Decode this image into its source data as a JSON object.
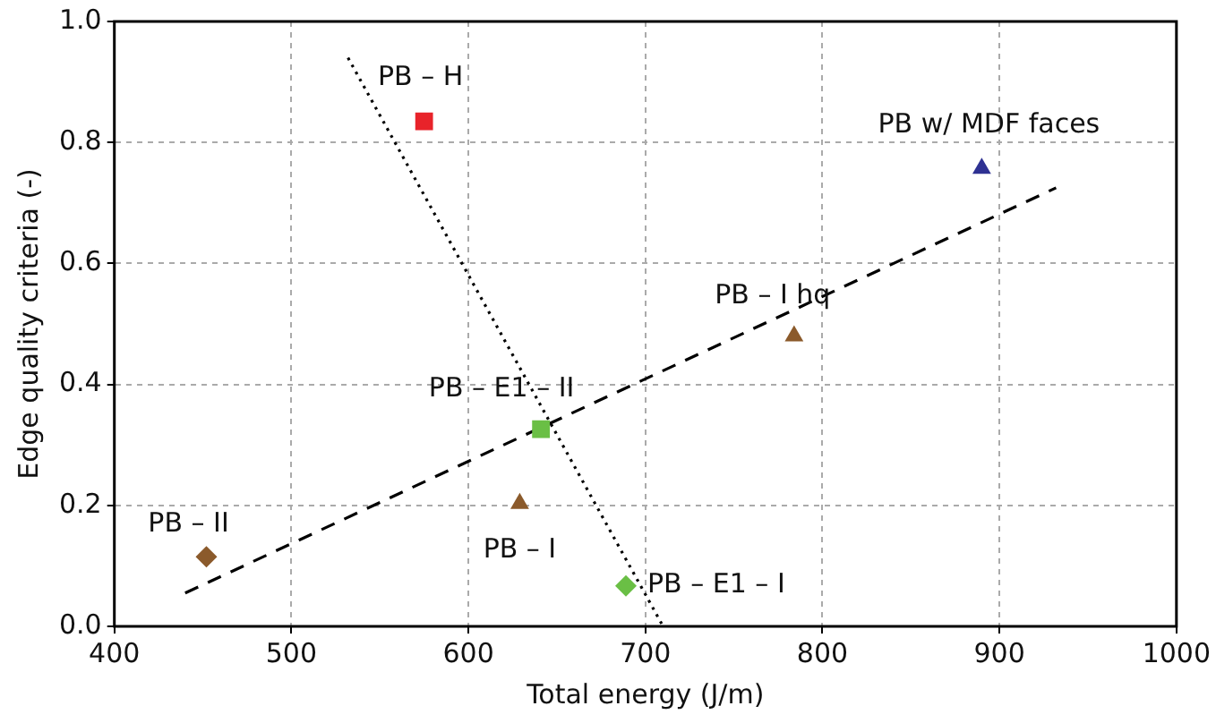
{
  "chart_data": {
    "type": "scatter",
    "xlabel": "Total energy (J/m)",
    "ylabel": "Edge quality criteria (-)",
    "xlim": [
      400,
      1000
    ],
    "xticks": [
      400,
      500,
      600,
      700,
      800,
      900,
      1000
    ],
    "ylim": [
      0,
      1
    ],
    "yticks": [
      {
        "value": 0,
        "label": "0.0"
      },
      {
        "value": 0.2,
        "label": "0.2"
      },
      {
        "value": 0.4,
        "label": "0.4"
      },
      {
        "value": 0.6,
        "label": "0.6"
      },
      {
        "value": 0.8,
        "label": "0.8"
      },
      {
        "value": 1,
        "label": "1.0"
      }
    ],
    "grid": true,
    "legend": false,
    "series": [
      {
        "name": "PB – H",
        "color": "#e8232a",
        "marker": "square",
        "x": [
          575
        ],
        "values": [
          0.835
        ]
      },
      {
        "name": "PB w/ MDF faces",
        "color": "#2e3192",
        "marker": "triangle",
        "x": [
          890
        ],
        "values": [
          0.757
        ]
      },
      {
        "name": "PB – I hq",
        "color": "#8b5a2b",
        "marker": "triangle",
        "x": [
          784
        ],
        "values": [
          0.48
        ]
      },
      {
        "name": "PB – E1 – II",
        "color": "#6abf45",
        "marker": "square",
        "x": [
          641
        ],
        "values": [
          0.326
        ]
      },
      {
        "name": "PB – I",
        "color": "#8b5a2b",
        "marker": "triangle",
        "x": [
          629
        ],
        "values": [
          0.203
        ]
      },
      {
        "name": "PB – II",
        "color": "#8b5a2b",
        "marker": "diamond",
        "x": [
          452
        ],
        "values": [
          0.115
        ]
      },
      {
        "name": "PB – E1 – I",
        "color": "#6abf45",
        "marker": "diamond",
        "x": [
          689
        ],
        "values": [
          0.067
        ]
      },
      {
        "type": "line",
        "color": "#000000",
        "line_style": "dashed",
        "marker": "none",
        "x": [
          440,
          932
        ],
        "values": [
          0.055,
          0.725
        ]
      },
      {
        "type": "line",
        "color": "#000000",
        "line_style": "dotted",
        "marker": "none",
        "x": [
          532,
          710
        ],
        "values": [
          0.94,
          0
        ]
      }
    ]
  }
}
